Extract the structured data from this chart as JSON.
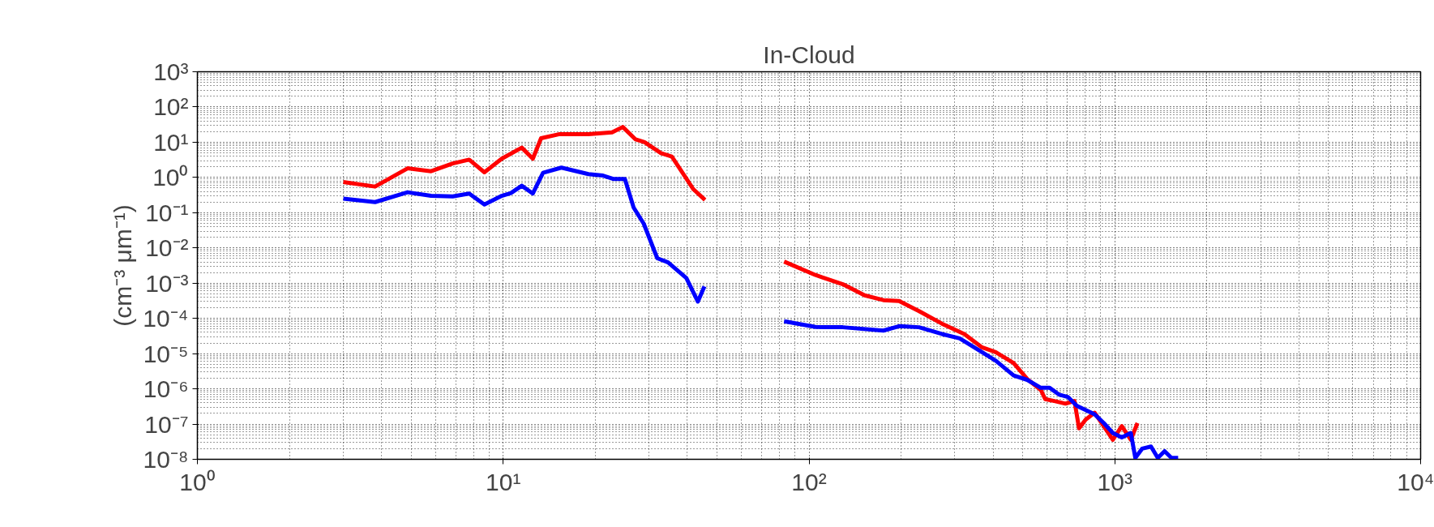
{
  "chart_data": {
    "type": "line",
    "title": "In-Cloud",
    "ylabel": "(cm⁻³ μm⁻¹)",
    "log": "xy",
    "grid": true,
    "marker": "none",
    "line_style": "solid",
    "xlim": [
      1,
      10000
    ],
    "xticks": [
      {
        "value": 1,
        "label": "10⁰"
      },
      {
        "value": 10,
        "label": "10¹"
      },
      {
        "value": 100,
        "label": "10²"
      },
      {
        "value": 1000,
        "label": "10³"
      },
      {
        "value": 10000,
        "label": "10⁴"
      }
    ],
    "ylim": [
      1e-08,
      1000
    ],
    "yticks": [
      {
        "value": 1e-08,
        "label": "10⁻⁸"
      },
      {
        "value": 1e-07,
        "label": "10⁻⁷"
      },
      {
        "value": 1e-06,
        "label": "10⁻⁶"
      },
      {
        "value": 1e-05,
        "label": "10⁻⁵"
      },
      {
        "value": 0.0001,
        "label": "10⁻⁴"
      },
      {
        "value": 0.001,
        "label": "10⁻³"
      },
      {
        "value": 0.01,
        "label": "10⁻²"
      },
      {
        "value": 0.1,
        "label": "10⁻¹"
      },
      {
        "value": 1,
        "label": "10⁰"
      },
      {
        "value": 10,
        "label": "10¹"
      },
      {
        "value": 100,
        "label": "10²"
      },
      {
        "value": 1000,
        "label": "10³"
      }
    ],
    "series": [
      {
        "color": "#ff0000",
        "x": [
          3,
          3.81,
          4.87,
          5.81,
          6.84,
          7.74,
          8.68,
          9.89,
          11.5,
          12.5,
          13.3,
          15.3,
          19.0,
          22.7,
          24.6,
          27.1,
          29.0,
          32.8,
          35.6,
          41.9,
          45.7
        ],
        "values": [
          0.74,
          0.55,
          1.82,
          1.5,
          2.5,
          3.2,
          1.4,
          3.4,
          7,
          3.4,
          13,
          17,
          17,
          19,
          27,
          12,
          10,
          4.9,
          3.9,
          0.46,
          0.23
        ]
      },
      {
        "color": "#0000ff",
        "x": [
          3,
          3.81,
          4.87,
          5.81,
          6.84,
          7.74,
          8.68,
          9.89,
          10.6,
          11.5,
          12.5,
          13.5,
          15.5,
          19.0,
          21.2,
          23.0,
          25.0,
          26.7,
          28.8,
          31.9,
          34.6,
          39.7,
          43.3,
          45.5
        ],
        "values": [
          0.25,
          0.2,
          0.38,
          0.3,
          0.29,
          0.35,
          0.17,
          0.3,
          0.36,
          0.58,
          0.35,
          1.35,
          1.9,
          1.24,
          1.13,
          0.9,
          0.9,
          0.14,
          0.049,
          0.0051,
          0.0039,
          0.0014,
          0.0003,
          0.00081
        ]
      },
      {
        "color": "#ff0000",
        "x": [
          82.9,
          105,
          129,
          152,
          175,
          197,
          229,
          272,
          322,
          368,
          408,
          467,
          517,
          573,
          592,
          634,
          690,
          738,
          764,
          803,
          859,
          920,
          985,
          1054,
          1128,
          1186
        ],
        "values": [
          0.0041,
          0.0017,
          0.00093,
          0.00045,
          0.00033,
          0.00031,
          0.00016,
          7.1e-05,
          3.6e-05,
          1.5e-05,
          1.1e-05,
          5.4e-06,
          1.9e-06,
          9.3e-07,
          5.1e-07,
          4.5e-07,
          3.8e-07,
          4.5e-07,
          7.6e-08,
          1.35e-07,
          2.1e-07,
          8.7e-08,
          3.6e-08,
          8.7e-08,
          3.6e-08,
          1.07e-07
        ]
      },
      {
        "color": "#0000ff",
        "x": [
          82.9,
          105,
          129,
          175,
          197,
          229,
          272,
          311,
          368,
          408,
          467,
          517,
          573,
          612,
          656,
          702,
          751,
          803,
          859,
          920,
          985,
          1054,
          1128,
          1167,
          1228,
          1313,
          1382,
          1455,
          1532,
          1611
        ],
        "values": [
          8.3e-05,
          5.7e-05,
          5.6e-05,
          4.5e-05,
          6e-05,
          5.6e-05,
          3.6e-05,
          2.7e-05,
          1.1e-05,
          6.3e-06,
          2.4e-06,
          1.8e-06,
          1.07e-06,
          1.07e-06,
          6.9e-07,
          5.9e-07,
          3.3e-07,
          2.5e-07,
          1.9e-07,
          1.07e-07,
          5.6e-08,
          4.2e-08,
          5.6e-08,
          1.1e-08,
          2e-08,
          2.3e-08,
          1.1e-08,
          1.7e-08,
          1.1e-08,
          1.1e-08
        ]
      }
    ]
  }
}
